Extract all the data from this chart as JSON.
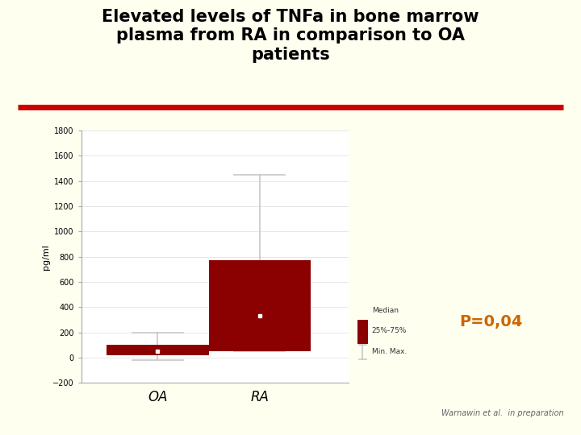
{
  "title": "Elevated levels of TNFa in bone marrow\nplasma from RA in comparison to OA\npatients",
  "title_fontsize": 15,
  "title_fontweight": "bold",
  "ylabel": "pg/ml",
  "categories": [
    "OA",
    "RA"
  ],
  "box_color": "#8B0000",
  "whisker_color": "#c8c8c8",
  "bg_outer": "#FFFFF0",
  "bg_plot": "#FFFFFF",
  "red_line_color": "#CC0000",
  "pvalue_text": "P=0,04",
  "pvalue_color": "#CC6600",
  "pvalue_fontsize": 14,
  "citation": "Warnawin et al.  in preparation",
  "citation_fontsize": 7,
  "ylim": [
    -200,
    1800
  ],
  "yticks": [
    -200,
    0,
    200,
    400,
    600,
    800,
    1000,
    1200,
    1400,
    1600,
    1800
  ],
  "OA": {
    "median": 50,
    "q1": 20,
    "q3": 100,
    "min": -20,
    "max": 200
  },
  "RA": {
    "median": 330,
    "q1": 50,
    "q3": 775,
    "min": 50,
    "max": 1450
  },
  "box_width": 0.4
}
